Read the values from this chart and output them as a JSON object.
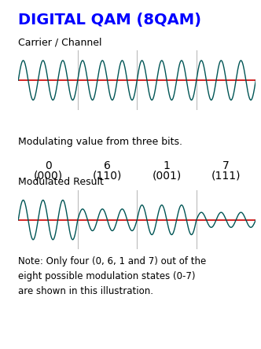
{
  "title": "DIGITAL QAM (8QAM)",
  "title_color": "#0000FF",
  "title_fontsize": 14,
  "carrier_label": "Carrier / Channel",
  "modulating_label": "Modulating value from three bits.",
  "modulated_label": "Modulated Result",
  "note_text": "Note: Only four (0, 6, 1 and 7) out of the\neight possible modulation states (0-7)\nare shown in this illustration.",
  "segments": [
    {
      "value": "0",
      "bits": "(000)",
      "amplitude": 1.0
    },
    {
      "value": "6",
      "bits": "(110)",
      "amplitude": 0.55
    },
    {
      "value": "1",
      "bits": "(001)",
      "amplitude": 0.75
    },
    {
      "value": "7",
      "bits": "(111)",
      "amplitude": 0.38
    }
  ],
  "carrier_freq": 12,
  "carrier_amplitude": 1.0,
  "wave_color": "#005555",
  "red_line_color": "#CC0000",
  "bg_color": "#FFFFFF",
  "divider_color": "#BBBBBB",
  "label_fontsize": 9,
  "value_fontsize": 10,
  "note_fontsize": 8.5,
  "plot_bg": "#FFFFFF"
}
